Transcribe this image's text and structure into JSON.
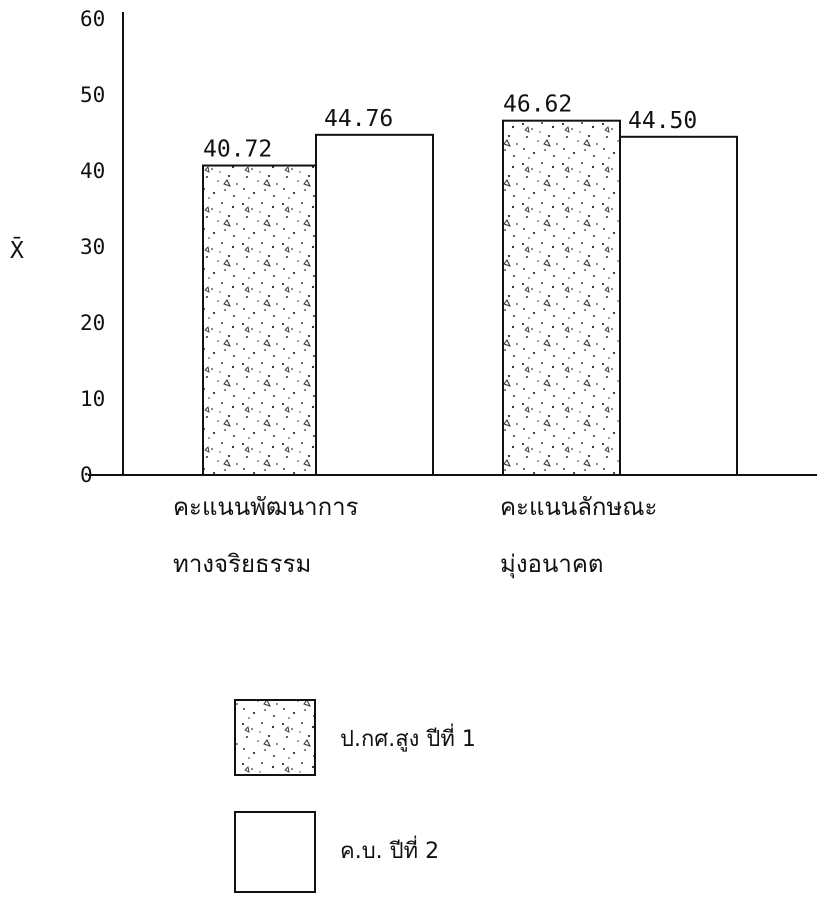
{
  "chart_data": {
    "type": "bar",
    "ylabel": "X̄",
    "ylim": [
      0,
      60
    ],
    "yticks": [
      "0",
      "10",
      "20",
      "30",
      "40",
      "50",
      "60"
    ],
    "categories": [
      [
        "คะแนนพัฒนาการ",
        "ทางจริยธรรม"
      ],
      [
        "คะแนนลักษณะ",
        "มุ่งอนาคต"
      ]
    ],
    "series": [
      {
        "name": "ป.กศ.สูง ปีที่ 1",
        "values": [
          40.72,
          46.62
        ],
        "labels": [
          "40.72",
          "46.62"
        ],
        "fill": "stippled"
      },
      {
        "name": "ค.บ. ปีที่ 2",
        "values": [
          44.76,
          44.5
        ],
        "labels": [
          "44.76",
          "44.50"
        ],
        "fill": "#ffffff"
      }
    ],
    "grid": false,
    "legend_position": "bottom"
  }
}
